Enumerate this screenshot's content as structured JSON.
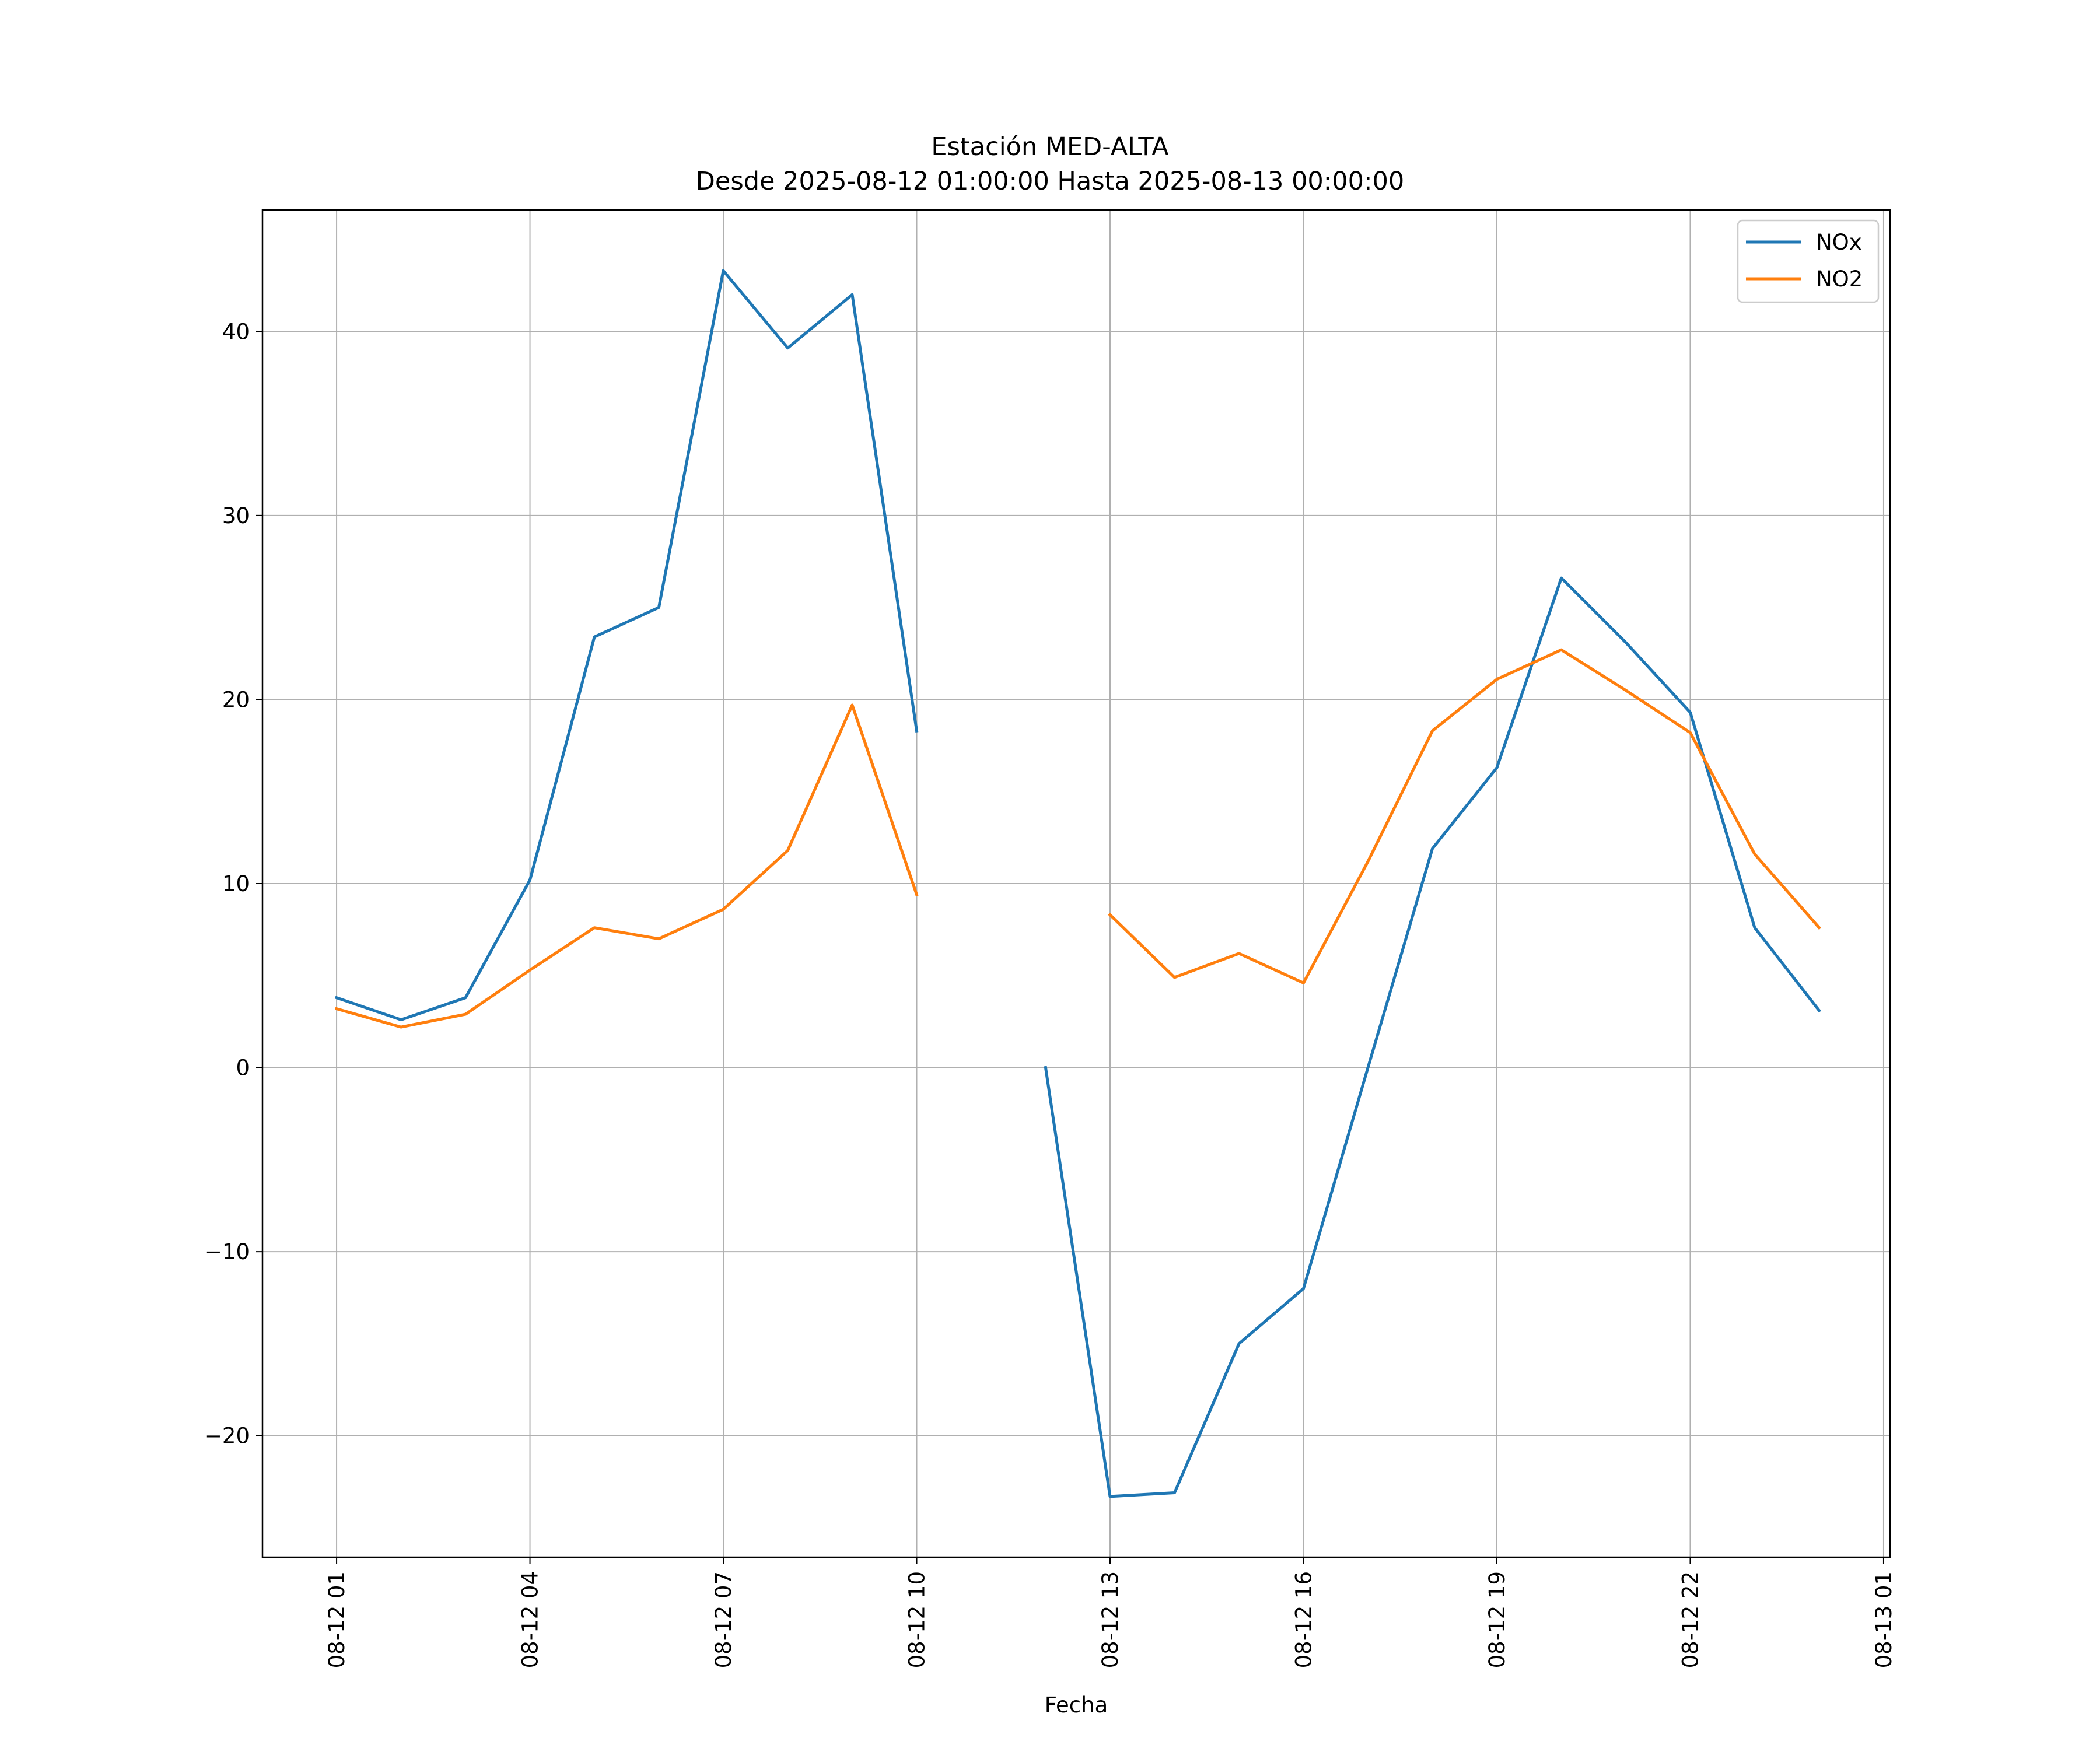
{
  "chart_data": {
    "type": "line",
    "title": "Estación MED-ALTA",
    "subtitle": "Desde 2025-08-12 01:00:00 Hasta 2025-08-13 00:00:00",
    "xlabel": "Fecha",
    "ylabel": "",
    "x_ticks": [
      "08-12 01",
      "08-12 04",
      "08-12 07",
      "08-12 10",
      "08-12 13",
      "08-12 16",
      "08-12 19",
      "08-12 22",
      "08-13 01"
    ],
    "y_ticks": [
      "−20",
      "−10",
      "0",
      "10",
      "20",
      "30",
      "40"
    ],
    "x_hours": [
      1,
      2,
      3,
      4,
      5,
      6,
      7,
      8,
      9,
      10,
      11,
      12,
      13,
      14,
      15,
      16,
      17,
      18,
      19,
      20,
      21,
      22,
      23,
      24
    ],
    "xlim_hours": [
      -0.15,
      25.1
    ],
    "ylim": [
      -26.6,
      46.6
    ],
    "grid": true,
    "legend_position": "top-right",
    "series": [
      {
        "name": "NOx",
        "color": "#1f77b4",
        "values": [
          3.8,
          2.6,
          3.8,
          10.2,
          23.4,
          25.0,
          43.3,
          39.1,
          42.0,
          18.3,
          null,
          0.0,
          -23.3,
          -23.1,
          -15.0,
          -12.0,
          0.0,
          11.9,
          16.3,
          26.6,
          23.1,
          19.3,
          7.6,
          3.1
        ]
      },
      {
        "name": "NO2",
        "color": "#ff7f0e",
        "values": [
          3.2,
          2.2,
          2.9,
          5.3,
          7.6,
          7.0,
          8.6,
          11.8,
          19.7,
          9.4,
          null,
          null,
          8.3,
          4.9,
          6.2,
          4.6,
          11.2,
          18.3,
          21.1,
          22.7,
          20.5,
          18.2,
          11.6,
          7.6
        ]
      }
    ]
  }
}
